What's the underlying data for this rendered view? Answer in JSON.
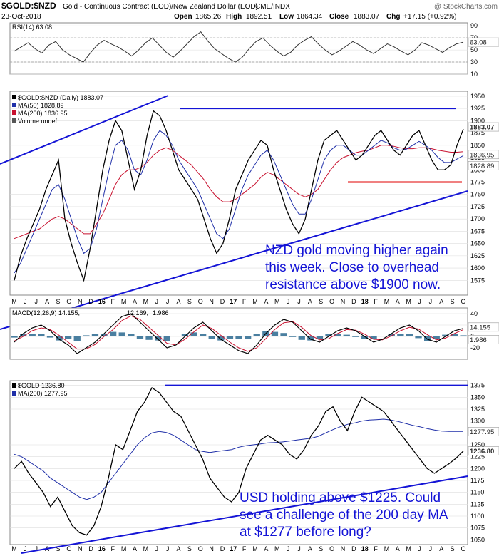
{
  "header": {
    "title_bold": "$GOLD:$NZD",
    "title_rest": "Gold - Continuous Contract (EOD)/New Zealand Dollar (EOD)",
    "exchange": "CME/INDX",
    "watermark": "@ StockCharts.com",
    "date": "23-Oct-2018",
    "ohlc": {
      "open_label": "Open",
      "open": "1865.26",
      "high_label": "High",
      "high": "1892.51",
      "low_label": "Low",
      "low": "1864.34",
      "close_label": "Close",
      "close": "1883.07",
      "chg_label": "Chg",
      "chg": "+17.15 (+0.92%)"
    }
  },
  "colors": {
    "price": "#000000",
    "ma50": "#1f2fa8",
    "ma200": "#c8102e",
    "trendline": "#1414d6",
    "support": "#e00000",
    "rsi": "#333333",
    "macd_line": "#000000",
    "macd_signal": "#c8102e",
    "macd_hist": "#4a7fa0",
    "grid": "#dddddd",
    "label_bg": "#ffffff"
  },
  "chart_data": [
    {
      "type": "line",
      "panel": "rsi",
      "legend": "RSI(14) 63.08",
      "ylim": [
        10,
        95
      ],
      "y_ticks": [
        "90",
        "70",
        "50",
        "30",
        "10"
      ],
      "overbought": 70,
      "oversold": 30,
      "last_value_label": "63.08",
      "series": [
        {
          "name": "RSI(14)",
          "values": [
            48,
            55,
            62,
            52,
            45,
            58,
            64,
            50,
            42,
            36,
            30,
            45,
            58,
            66,
            60,
            55,
            48,
            40,
            50,
            62,
            70,
            58,
            46,
            38,
            48,
            60,
            72,
            80,
            65,
            52,
            44,
            36,
            30,
            38,
            52,
            64,
            70,
            58,
            48,
            40,
            46,
            58,
            66,
            72,
            60,
            50,
            42,
            48,
            56,
            64,
            58,
            50,
            44,
            52,
            60,
            55,
            48,
            42,
            50,
            62,
            58,
            52,
            46,
            54,
            60,
            63
          ]
        }
      ]
    },
    {
      "type": "line",
      "panel": "price",
      "legend": [
        "$GOLD:$NZD (Daily) 1883.07",
        "MA(50) 1828.89",
        "MA(200) 1836.95",
        "Volume undef"
      ],
      "ylim": [
        1545,
        1960
      ],
      "y_ticks": [
        "1950",
        "1925",
        "1900",
        "1875",
        "1850",
        "1825",
        "1800",
        "1775",
        "1750",
        "1725",
        "1700",
        "1675",
        "1650",
        "1625",
        "1600",
        "1575"
      ],
      "x_labels": [
        "M",
        "J",
        "J",
        "A",
        "S",
        "O",
        "N",
        "D",
        "16",
        "F",
        "M",
        "A",
        "M",
        "J",
        "J",
        "A",
        "S",
        "O",
        "N",
        "D",
        "17",
        "F",
        "M",
        "A",
        "M",
        "J",
        "J",
        "A",
        "S",
        "O",
        "N",
        "D",
        "18",
        "F",
        "M",
        "A",
        "M",
        "J",
        "J",
        "A",
        "S",
        "O"
      ],
      "price_labels": [
        "1883.07",
        "1836.95",
        "1828.89"
      ],
      "series": [
        {
          "name": "$GOLD:$NZD",
          "values": [
            1575,
            1625,
            1660,
            1690,
            1720,
            1760,
            1790,
            1820,
            1700,
            1650,
            1610,
            1575,
            1640,
            1720,
            1800,
            1860,
            1900,
            1880,
            1820,
            1760,
            1800,
            1870,
            1920,
            1910,
            1880,
            1840,
            1800,
            1780,
            1760,
            1740,
            1700,
            1660,
            1630,
            1650,
            1700,
            1760,
            1790,
            1820,
            1840,
            1860,
            1850,
            1800,
            1760,
            1720,
            1690,
            1670,
            1700,
            1760,
            1820,
            1860,
            1870,
            1880,
            1860,
            1840,
            1820,
            1830,
            1850,
            1870,
            1880,
            1860,
            1840,
            1830,
            1850,
            1870,
            1880,
            1850,
            1820,
            1800,
            1800,
            1810,
            1850,
            1883
          ]
        },
        {
          "name": "MA(50)",
          "values": [
            1590,
            1610,
            1640,
            1670,
            1700,
            1730,
            1760,
            1770,
            1740,
            1700,
            1660,
            1630,
            1640,
            1680,
            1740,
            1800,
            1850,
            1860,
            1840,
            1800,
            1790,
            1820,
            1860,
            1880,
            1870,
            1850,
            1820,
            1800,
            1780,
            1760,
            1730,
            1700,
            1670,
            1660,
            1680,
            1720,
            1760,
            1790,
            1810,
            1830,
            1840,
            1820,
            1790,
            1760,
            1730,
            1710,
            1710,
            1740,
            1780,
            1820,
            1840,
            1850,
            1850,
            1840,
            1830,
            1830,
            1840,
            1850,
            1860,
            1855,
            1845,
            1840,
            1842,
            1850,
            1858,
            1850,
            1840,
            1825,
            1815,
            1815,
            1822,
            1829
          ]
        },
        {
          "name": "MA(200)",
          "values": [
            1660,
            1665,
            1670,
            1675,
            1680,
            1690,
            1700,
            1705,
            1700,
            1690,
            1680,
            1670,
            1670,
            1690,
            1710,
            1740,
            1770,
            1790,
            1800,
            1800,
            1805,
            1815,
            1830,
            1840,
            1845,
            1840,
            1830,
            1820,
            1810,
            1795,
            1780,
            1760,
            1745,
            1735,
            1735,
            1740,
            1750,
            1760,
            1770,
            1785,
            1795,
            1790,
            1780,
            1770,
            1760,
            1750,
            1745,
            1750,
            1760,
            1780,
            1800,
            1815,
            1825,
            1830,
            1835,
            1838,
            1840,
            1845,
            1850,
            1850,
            1848,
            1845,
            1843,
            1843,
            1845,
            1845,
            1843,
            1840,
            1838,
            1836,
            1836,
            1837
          ]
        }
      ],
      "resistance": 1925,
      "support": 1775,
      "annotation": [
        "NZD gold moving higher again",
        "this week. Close to overhead",
        "resistance above $1900 now."
      ]
    },
    {
      "type": "line",
      "panel": "macd",
      "legend": [
        "MACD(12,26,9) 14.155,",
        "12.169,",
        "1.986"
      ],
      "ylim": [
        -40,
        50
      ],
      "y_ticks": [
        "40",
        "20",
        "0",
        "-20"
      ],
      "last_value_labels": [
        "14.155",
        "1.986"
      ],
      "series": [
        {
          "name": "MACD",
          "values": [
            -10,
            5,
            15,
            20,
            10,
            -5,
            -15,
            -30,
            -20,
            -10,
            5,
            20,
            35,
            40,
            25,
            10,
            -5,
            -20,
            -15,
            0,
            15,
            25,
            10,
            -5,
            -15,
            -25,
            -30,
            -15,
            5,
            20,
            30,
            25,
            10,
            -5,
            -10,
            0,
            10,
            15,
            10,
            0,
            -10,
            -5,
            5,
            15,
            20,
            10,
            -5,
            -10,
            0,
            10,
            14
          ]
        },
        {
          "name": "Signal",
          "values": [
            -8,
            0,
            10,
            15,
            12,
            2,
            -10,
            -22,
            -22,
            -14,
            0,
            12,
            28,
            36,
            30,
            16,
            2,
            -12,
            -15,
            -5,
            8,
            20,
            14,
            2,
            -10,
            -20,
            -26,
            -20,
            -4,
            12,
            24,
            26,
            16,
            2,
            -6,
            -4,
            5,
            12,
            11,
            4,
            -5,
            -6,
            1,
            10,
            16,
            13,
            3,
            -6,
            -3,
            5,
            12
          ]
        },
        {
          "name": "Histogram",
          "values": [
            -2,
            5,
            5,
            5,
            -2,
            -7,
            -5,
            -8,
            2,
            4,
            5,
            8,
            7,
            4,
            -5,
            -6,
            -7,
            -8,
            0,
            5,
            7,
            5,
            -4,
            -7,
            -5,
            -5,
            -4,
            5,
            9,
            8,
            6,
            -1,
            -6,
            -7,
            -4,
            4,
            5,
            3,
            -1,
            -4,
            -5,
            1,
            4,
            5,
            4,
            -3,
            -8,
            -4,
            3,
            5,
            2
          ]
        }
      ]
    },
    {
      "type": "line",
      "panel": "usd",
      "legend": [
        "$GOLD 1236.80",
        "MA(200) 1277.95"
      ],
      "ylim": [
        1040,
        1385
      ],
      "y_ticks": [
        "1375",
        "1350",
        "1325",
        "1300",
        "1275",
        "1250",
        "1225",
        "1200",
        "1175",
        "1150",
        "1125",
        "1100",
        "1075",
        "1050"
      ],
      "price_labels": [
        "1277.95",
        "1236.80"
      ],
      "series": [
        {
          "name": "$GOLD",
          "values": [
            1200,
            1215,
            1190,
            1170,
            1150,
            1120,
            1140,
            1110,
            1080,
            1065,
            1060,
            1080,
            1120,
            1180,
            1250,
            1240,
            1280,
            1320,
            1340,
            1370,
            1360,
            1340,
            1320,
            1310,
            1280,
            1250,
            1220,
            1180,
            1160,
            1140,
            1130,
            1150,
            1200,
            1230,
            1260,
            1270,
            1260,
            1250,
            1230,
            1220,
            1240,
            1270,
            1290,
            1320,
            1330,
            1300,
            1280,
            1320,
            1350,
            1340,
            1330,
            1320,
            1300,
            1280,
            1260,
            1240,
            1220,
            1200,
            1190,
            1200,
            1210,
            1222,
            1237
          ]
        },
        {
          "name": "MA(200)",
          "values": [
            1230,
            1225,
            1215,
            1205,
            1195,
            1180,
            1170,
            1160,
            1150,
            1140,
            1135,
            1140,
            1150,
            1170,
            1190,
            1210,
            1230,
            1250,
            1265,
            1275,
            1278,
            1276,
            1270,
            1260,
            1250,
            1240,
            1236,
            1234,
            1236,
            1238,
            1240,
            1245,
            1248,
            1250,
            1252,
            1254,
            1255,
            1256,
            1258,
            1260,
            1262,
            1264,
            1268,
            1275,
            1282,
            1288,
            1293,
            1296,
            1300,
            1302,
            1303,
            1304,
            1302,
            1299,
            1295,
            1291,
            1288,
            1284,
            1281,
            1279,
            1278,
            1278,
            1278
          ]
        }
      ],
      "resistance": 1375,
      "annotation": [
        "USD holding above $1225. Could",
        "see a challenge of the 200 day MA",
        "at $1277 before long?"
      ]
    }
  ]
}
